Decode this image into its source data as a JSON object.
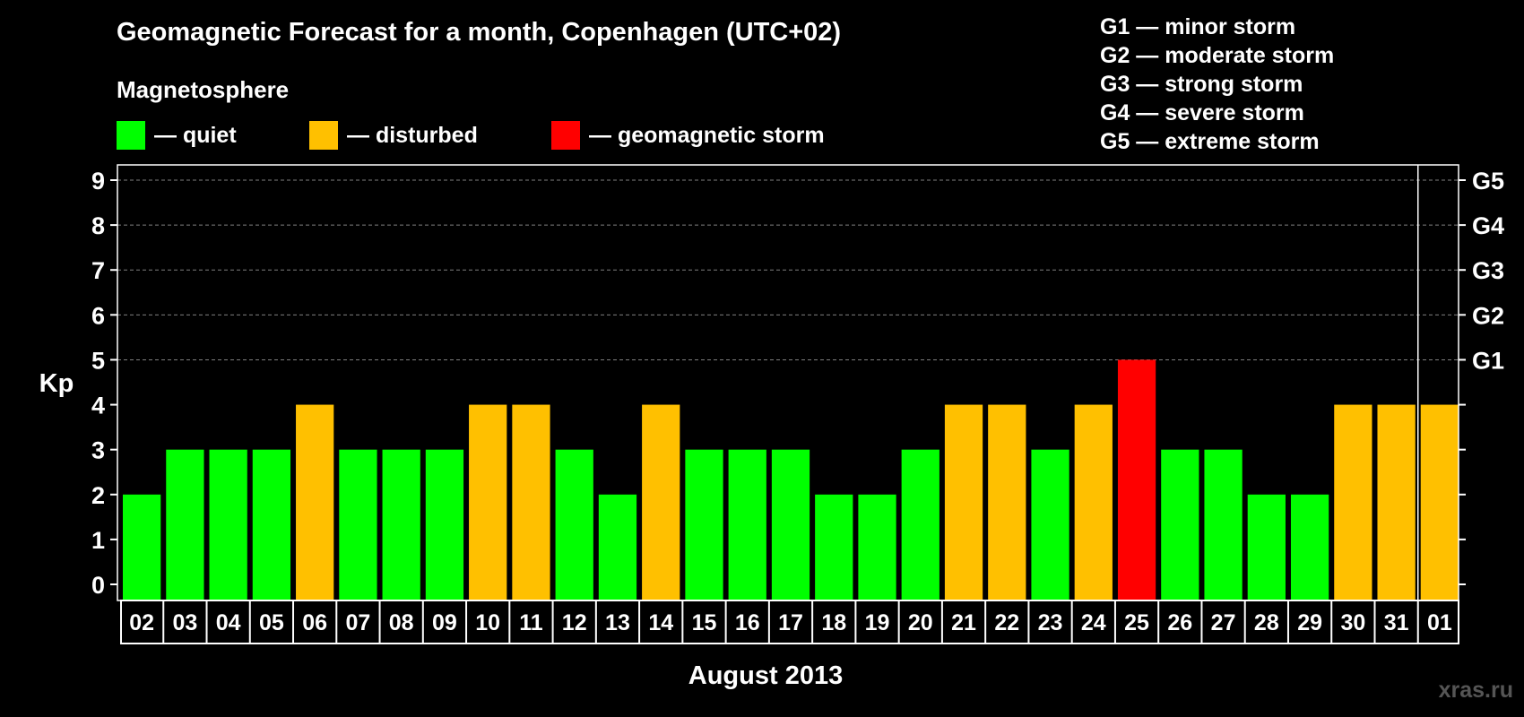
{
  "title": "Geomagnetic Forecast for a month, Copenhagen (UTC+02)",
  "legend": {
    "heading": "Magnetosphere",
    "items": [
      {
        "label": "— quiet",
        "color": "#00ff00"
      },
      {
        "label": "— disturbed",
        "color": "#ffc000"
      },
      {
        "label": "— geomagnetic storm",
        "color": "#ff0000"
      }
    ]
  },
  "g_scale": [
    "G1 — minor storm",
    "G2 — moderate storm",
    "G3 — strong storm",
    "G4 — severe storm",
    "G5 — extreme storm"
  ],
  "watermark": "xras.ru",
  "chart_data": {
    "type": "bar",
    "ylabel": "Kp",
    "xlabel": "August 2013",
    "ylim": [
      0,
      9
    ],
    "yticks": [
      0,
      1,
      2,
      3,
      4,
      5,
      6,
      7,
      8,
      9
    ],
    "grid_dashed_from": 5,
    "right_labels": [
      {
        "y": 5,
        "label": "G1"
      },
      {
        "y": 6,
        "label": "G2"
      },
      {
        "y": 7,
        "label": "G3"
      },
      {
        "y": 8,
        "label": "G4"
      },
      {
        "y": 9,
        "label": "G5"
      }
    ],
    "categories": [
      "02",
      "03",
      "04",
      "05",
      "06",
      "07",
      "08",
      "09",
      "10",
      "11",
      "12",
      "13",
      "14",
      "15",
      "16",
      "17",
      "18",
      "19",
      "20",
      "21",
      "22",
      "23",
      "24",
      "25",
      "26",
      "27",
      "28",
      "29",
      "30",
      "31",
      "01"
    ],
    "values": [
      2,
      3,
      3,
      3,
      4,
      3,
      3,
      3,
      4,
      4,
      3,
      2,
      4,
      3,
      3,
      3,
      2,
      2,
      3,
      4,
      4,
      3,
      4,
      5,
      3,
      3,
      2,
      2,
      4,
      4,
      4
    ],
    "color_rule": {
      "quiet_max": 3,
      "disturbed": 4,
      "storm_min": 5
    },
    "colors": {
      "quiet": "#00ff00",
      "disturbed": "#ffc000",
      "storm": "#ff0000",
      "axis": "#ffffff",
      "grid": "#7f7f7f"
    },
    "month_divider_before": "01"
  }
}
